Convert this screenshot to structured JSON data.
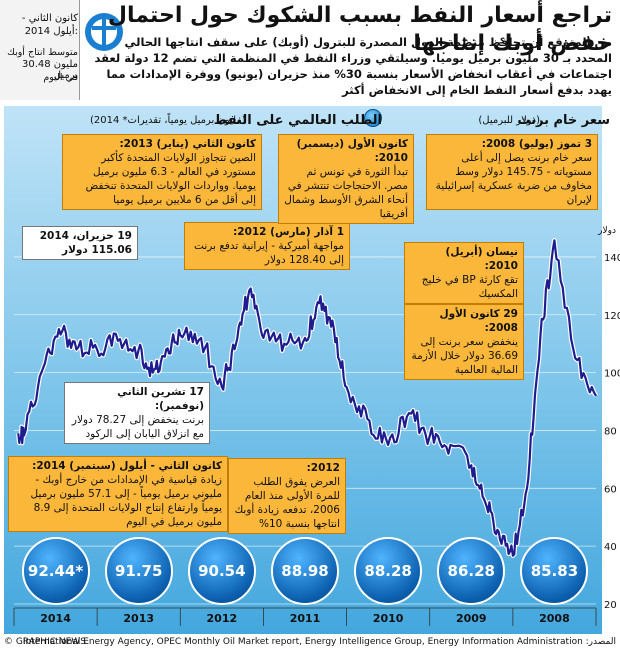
{
  "title": "تراجع أسعار النفط بسبب الشكوك حول احتمال خفض أوبك إنتاجها",
  "intro": "من المتوقع أن تحافظ منظمة الدول المصدرة للبترول (أوبك) على سقف انتاجها الحالي المحدد بـ 30 مليون برميل يوميا. وسيلتقي وزراء النفط في المنظمة التي تضم 12 دولة لعقد اجتماعات في أعقاب انخفاض الأسعار بنسبة 30% منذ حزيران (يونيو) ووفرة الإمدادات مما يهدد بدفع أسعار النفط الخام إلى الانخفاض أكثر",
  "side_panel": {
    "date": "كانون الثاني - أيلول 2014:",
    "desc": "متوسط انتاج أوبك",
    "value": "30.48 مليون برميل",
    "note": "في اليوم"
  },
  "legend": {
    "brent": "سعر خام برنت",
    "brent_unit": "(دولار للبرميل)",
    "demand": "الطلب العالمي على النفط",
    "demand_unit": "(مليون برميل يومياً، تقديرات* 2014)",
    "y_unit": "دولار"
  },
  "annotations": {
    "a2014_jun": {
      "title": "19 حزيران، 2014",
      "text": "115.06 دولار"
    },
    "a2014_nov": {
      "title": "17 تشرين الثاني (نوفمبر):",
      "text": "برنت ينخفض إلى 78.27 دولار مع انزلاق اليابان إلى الركود"
    },
    "a2014_jan_sep": {
      "title": "كانون الثاني - أيلول (سبتمبر) 2014:",
      "text": "زيادة قياسية في الإمدادات من خارج أوبك - مليوني برميل يومياً - إلى 57.1 مليون برميل يومياً وارتفاع إنتاج الولايات المتحدة إلى 8.9 مليون برميل في اليوم"
    },
    "a2013_jan": {
      "title": "كانون الثاني (يناير) 2013:",
      "text": "الصين تتجاوز الولايات المتحدة كأكبر مستورد في العالم - 6.3 مليون برميل يوميا. وواردات الولايات المتحدة تنخفض إلى أقل من 6 ملايين برميل يوميا"
    },
    "a2012_mar": {
      "title": "1 آذار (مارس) 2012:",
      "text": "مواجهة أميركية - إيرانية تدفع برنت إلى 128.40 دولار"
    },
    "a2012": {
      "title": "2012:",
      "text": "العرض يفوق الطلب للمرة الأولى منذ العام 2006، تدفعه زيادة أوبك انتاجها بنسبة 10%"
    },
    "a2010_dec": {
      "title": "كانون الأول (ديسمبر) 2010:",
      "text": "تبدأ الثورة في تونس ثم مصر. الاحتجاجات تنتشر في أنحاء الشرق الأوسط وشمال أفريقيا"
    },
    "a2010_apr": {
      "title": "نيسان (أبريل) 2010:",
      "text": "تقع كارثة BP في خليج المكسيك"
    },
    "a2008_dec": {
      "title": "29 كانون الأول 2008:",
      "text": "ينخفض سعر برنت إلى 36.69 دولار خلال الأزمة المالية العالمية"
    },
    "a2008_jul": {
      "title": "3 تموز (يوليو) 2008:",
      "text": "سعر خام برنت يصل إلى أعلى مستوياته - 145.75 دولار وسط مخاوف من ضربة عسكرية إسرائيلية لإيران"
    }
  },
  "demand_circles": [
    {
      "year": "2014",
      "label": "92.44*"
    },
    {
      "year": "2013",
      "label": "91.75"
    },
    {
      "year": "2012",
      "label": "90.54"
    },
    {
      "year": "2011",
      "label": "88.98"
    },
    {
      "year": "2010",
      "label": "88.28"
    },
    {
      "year": "2009",
      "label": "86.28"
    },
    {
      "year": "2008",
      "label": "85.83"
    }
  ],
  "source_left": "© GRAPHIC NEWS",
  "source_right": "المصدر: International Energy Agency, OPEC Monthly Oil Market report, Energy Intelligence Group, Energy Information Administration",
  "colors": {
    "line": "#1d1d8f",
    "box": "#fbb73a",
    "circle": "#0b5fae"
  },
  "chart_data": {
    "type": "line",
    "title": "سعر خام برنت",
    "ylabel": "دولار",
    "ylim": [
      20,
      150
    ],
    "yticks": [
      20,
      40,
      60,
      80,
      100,
      120,
      140
    ],
    "x_axis_order": "right-to-left (2008 at right, 2014 at left)",
    "years": [
      "2008",
      "2009",
      "2010",
      "2011",
      "2012",
      "2013",
      "2014"
    ],
    "series": [
      {
        "name": "سعر خام برنت",
        "x": [
          2008.0,
          2008.25,
          2008.5,
          2008.67,
          2008.83,
          2009.0,
          2009.17,
          2009.33,
          2009.5,
          2009.75,
          2010.0,
          2010.25,
          2010.5,
          2010.75,
          2011.0,
          2011.17,
          2011.33,
          2011.5,
          2011.75,
          2012.0,
          2012.17,
          2012.33,
          2012.5,
          2012.75,
          2013.0,
          2013.17,
          2013.33,
          2013.5,
          2013.75,
          2014.0,
          2014.25,
          2014.46,
          2014.67,
          2014.88,
          2014.95
        ],
        "y": [
          92,
          105,
          145.75,
          112,
          60,
          36.69,
          45,
          55,
          68,
          75,
          78,
          86,
          75,
          84,
          95,
          118,
          124,
          112,
          110,
          112,
          128.4,
          110,
          95,
          112,
          113,
          108,
          100,
          108,
          111,
          108,
          108,
          115.06,
          100,
          78.27,
          79
        ]
      }
    ],
    "demand_series": {
      "name": "الطلب العالمي على النفط",
      "categories": [
        "2008",
        "2009",
        "2010",
        "2011",
        "2012",
        "2013",
        "2014"
      ],
      "values": [
        85.83,
        86.28,
        88.28,
        88.98,
        90.54,
        91.75,
        92.44
      ]
    }
  }
}
